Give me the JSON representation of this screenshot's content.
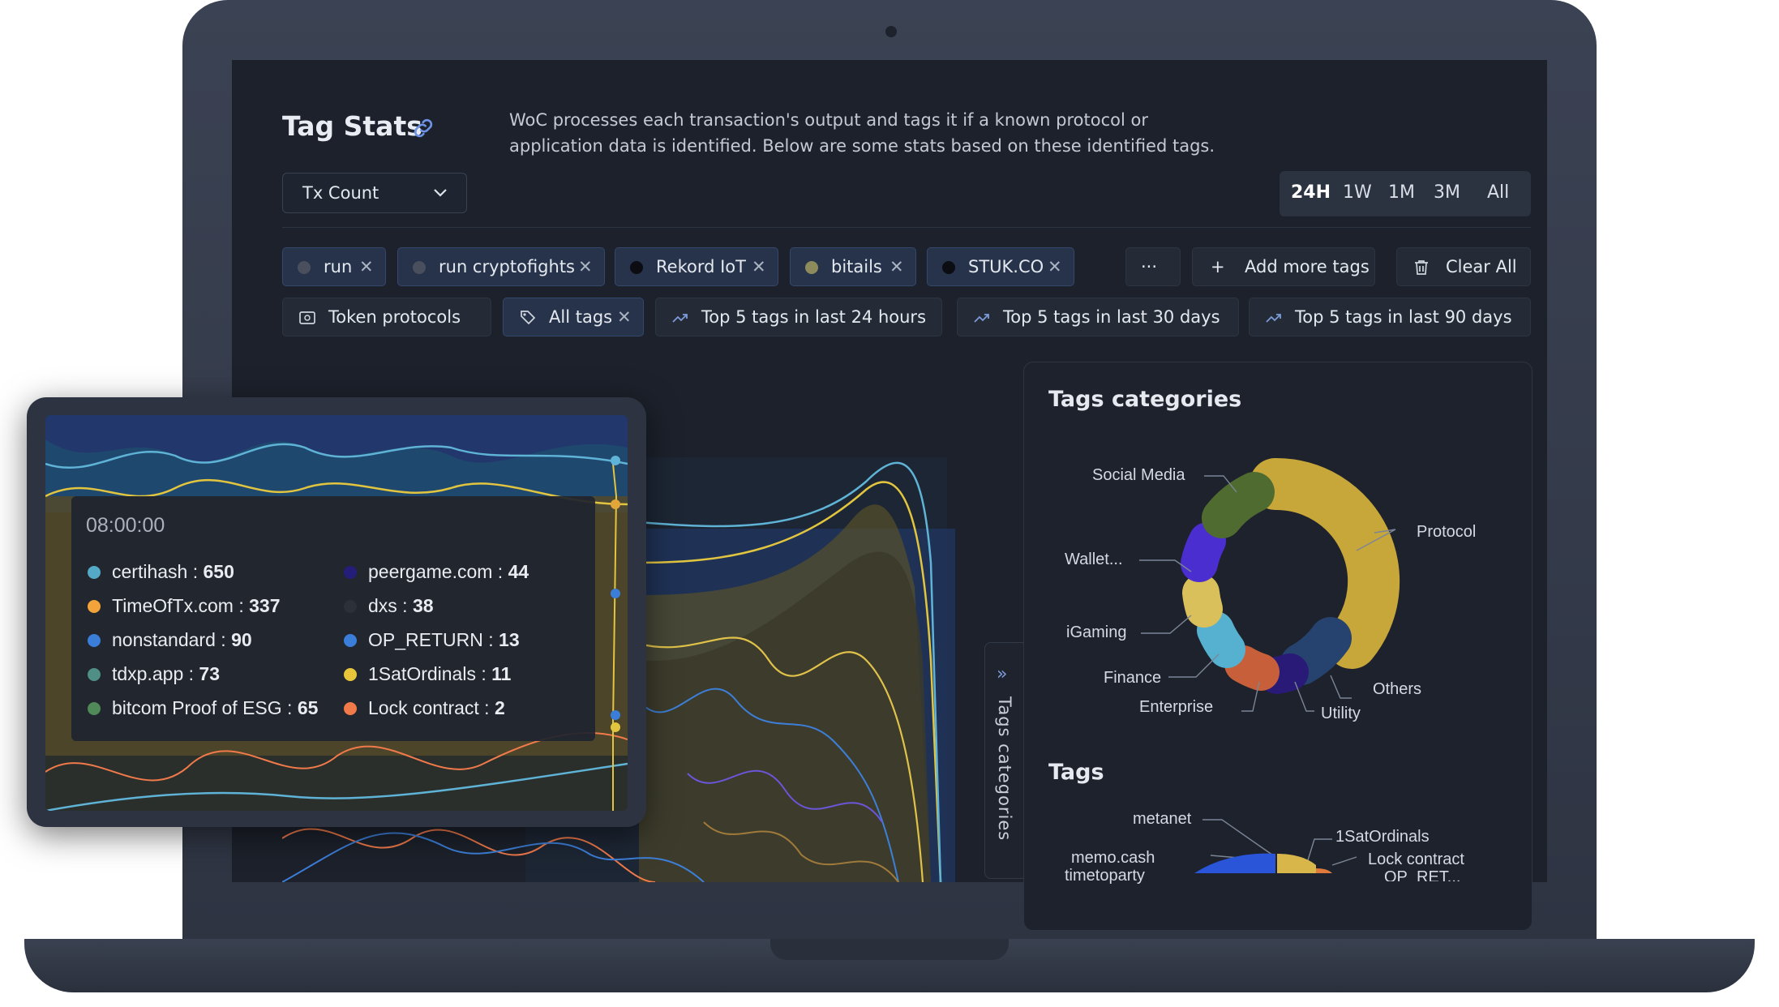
{
  "header": {
    "title": "Tag Stats",
    "description": "WoC processes each transaction's output and tags it if a known protocol or application data is identified. Below are some stats based on these identified tags."
  },
  "metric_select": {
    "value": "Tx Count"
  },
  "time_ranges": [
    "24H",
    "1W",
    "1M",
    "3M",
    "All"
  ],
  "active_range": "24H",
  "selected_tags": [
    {
      "label": "run",
      "color": "#4a4f5e"
    },
    {
      "label": "run cryptofights",
      "color": "#4a4f5e"
    },
    {
      "label": "Rekord IoT",
      "color": "#0b0d12"
    },
    {
      "label": "bitails",
      "color": "#8d8a5c"
    },
    {
      "label": "STUK.CO",
      "color": "#0b0d12"
    }
  ],
  "tag_actions": {
    "more": "···",
    "add": "Add more tags",
    "clear": "Clear All"
  },
  "presets": {
    "token_protocols": "Token protocols",
    "all_tags": "All tags",
    "top24h": "Top 5 tags in last 24 hours",
    "top30d": "Top 5 tags in last 30 days",
    "top90d": "Top 5 tags in last 90 days"
  },
  "side_tab": {
    "label": "Tags categories",
    "arrow": "»"
  },
  "panel": {
    "categories_title": "Tags categories",
    "tags_title": "Tags"
  },
  "categories_chart": [
    {
      "label": "Protocol",
      "color": "#c8a73a"
    },
    {
      "label": "Others",
      "color": "#26426e"
    },
    {
      "label": "Utility",
      "color": "#2a1a78"
    },
    {
      "label": "Enterprise",
      "color": "#c7603a"
    },
    {
      "label": "Finance",
      "color": "#55b1cf"
    },
    {
      "label": "iGaming",
      "color": "#d9c05a"
    },
    {
      "label": "Wallet...",
      "color": "#4a2ecf"
    },
    {
      "label": "Social Media",
      "color": "#4f6b30"
    }
  ],
  "tags_chart_labels": [
    "metanet",
    "1SatOrdinals",
    "memo.cash",
    "Lock contract",
    "timetoparty",
    "OP_RET..."
  ],
  "tooltip": {
    "time": "08:00:00",
    "items": [
      {
        "name": "certihash",
        "value": "650",
        "color": "#54aac6"
      },
      {
        "name": "peergame.com",
        "value": "44",
        "color": "#241e7a"
      },
      {
        "name": "TimeOfTx.com",
        "value": "337",
        "color": "#f2a33a"
      },
      {
        "name": "dxs",
        "value": "38",
        "color": "#2c3139"
      },
      {
        "name": "nonstandard",
        "value": "90",
        "color": "#3a7ed9"
      },
      {
        "name": "OP_RETURN",
        "value": "13",
        "color": "#3a7ed9"
      },
      {
        "name": "tdxp.app",
        "value": "73",
        "color": "#4f8f86"
      },
      {
        "name": "1SatOrdinals",
        "value": "11",
        "color": "#e8c53a"
      },
      {
        "name": "bitcom Proof of ESG",
        "value": "65",
        "color": "#4f8a58"
      },
      {
        "name": "Lock contract",
        "value": "2",
        "color": "#f07a4a"
      }
    ]
  }
}
